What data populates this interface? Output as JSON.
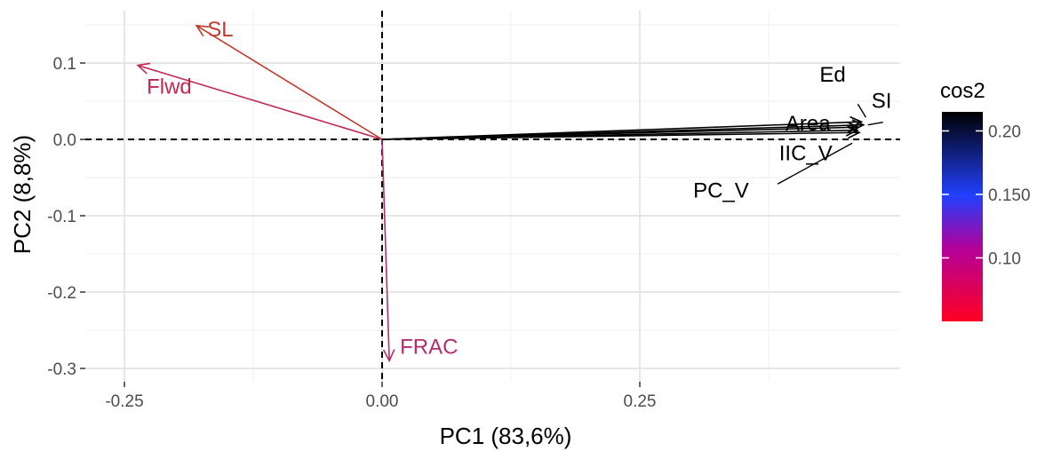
{
  "chart_data": {
    "type": "biplot",
    "xlabel": "PC1 (83,6%)",
    "ylabel": "PC2 (8,8%)",
    "xlim": [
      -0.27,
      0.49
    ],
    "ylim": [
      -0.31,
      0.165
    ],
    "x_ticks": [
      {
        "value": -0.25,
        "label": "-0.25"
      },
      {
        "value": 0.0,
        "label": "0.00"
      },
      {
        "value": 0.25,
        "label": "0.25"
      }
    ],
    "y_ticks": [
      {
        "value": 0.1,
        "label": "0.1"
      },
      {
        "value": 0.0,
        "label": "0.0"
      },
      {
        "value": -0.1,
        "label": "-0.1"
      },
      {
        "value": -0.2,
        "label": "-0.2"
      },
      {
        "value": -0.3,
        "label": "-0.3"
      }
    ],
    "grid": true,
    "reference_lines": {
      "x": 0,
      "y": 0,
      "style": "dashed"
    },
    "variables": [
      {
        "name": "SL",
        "x": -0.18,
        "y": 0.149,
        "cos2": 0.07,
        "color": "#c0392b"
      },
      {
        "name": "Flwd",
        "x": -0.237,
        "y": 0.097,
        "cos2": 0.08,
        "color": "#c2274f"
      },
      {
        "name": "FRAC",
        "x": 0.007,
        "y": -0.29,
        "cos2": 0.09,
        "color": "#b0306e"
      },
      {
        "name": "Ed",
        "x": 0.465,
        "y": 0.023,
        "cos2": 0.215,
        "color": "#000000"
      },
      {
        "name": "SI",
        "x": 0.467,
        "y": 0.019,
        "cos2": 0.215,
        "color": "#000000"
      },
      {
        "name": "Area",
        "x": 0.462,
        "y": 0.016,
        "cos2": 0.215,
        "color": "#000000"
      },
      {
        "name": "IIC_V",
        "x": 0.461,
        "y": 0.012,
        "cos2": 0.215,
        "color": "#000000"
      },
      {
        "name": "PC_V",
        "x": 0.463,
        "y": 0.009,
        "cos2": 0.215,
        "color": "#000000"
      }
    ],
    "legend": {
      "title": "cos2",
      "placement": "right",
      "range": [
        0.05,
        0.215
      ],
      "ticks": [
        {
          "value": 0.2,
          "label": "0.20"
        },
        {
          "value": 0.15,
          "label": "0.150"
        },
        {
          "value": 0.1,
          "label": "0.10"
        }
      ],
      "gradient": [
        "#ff0022",
        "#9b00a8",
        "#1a3cff",
        "#000000"
      ]
    }
  }
}
